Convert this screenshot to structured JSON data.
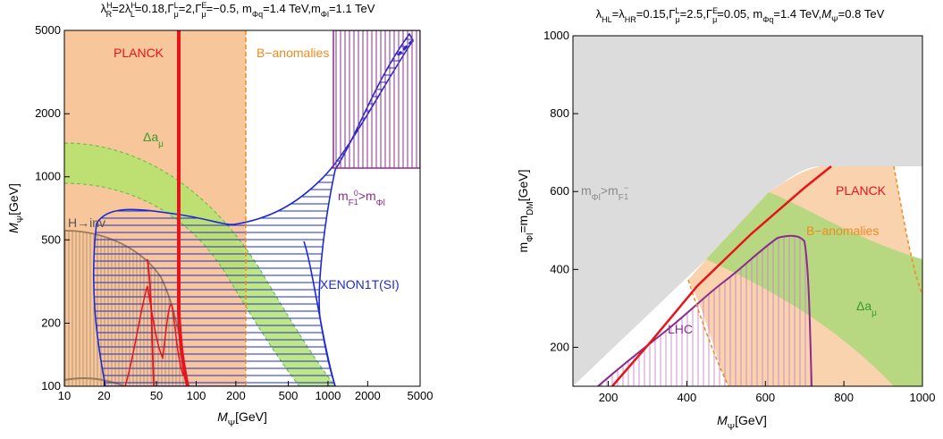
{
  "chart_data": [
    {
      "type": "region-plot",
      "title": "λ_R^H=2λ_L^H=0.18,Γ_μ^L=2,Γ_μ^E=−0.5, m_Φq=1.4 TeV,m_Φl=1.1 TeV",
      "xlabel": "MΨ[GeV]",
      "ylabel": "MΨ[GeV]",
      "x_scale": "log",
      "y_scale": "log",
      "xlim": [
        10,
        5000
      ],
      "ylim": [
        100,
        5000
      ],
      "x_ticks": [
        10,
        20,
        50,
        100,
        200,
        500,
        1000,
        2000,
        5000
      ],
      "y_ticks": [
        100,
        200,
        500,
        1000,
        2000,
        5000
      ],
      "x_tick_labels": [
        "10",
        "20",
        "50",
        "100",
        "200",
        "500",
        "1000",
        "2000",
        "5000"
      ],
      "y_tick_labels": [
        "100",
        "200",
        "500",
        "1000",
        "2000",
        "5000"
      ],
      "region_labels": [
        "PLANCK",
        "B−anomalies",
        "Δaμ",
        "mF1⁰>mΦl",
        "H→inv",
        "XENON1T(SI)"
      ],
      "colors": {
        "planck": "#e8141c",
        "b_anomalies": "#f7c69a",
        "b_anomalies_edge": "#f08a1e",
        "delta_a_mu": "#b4e46c",
        "delta_a_mu_edge": "#6fc04a",
        "xenon": "#1d2bd6",
        "mass_bound": "#8b2c8c",
        "h_inv": "#9a7a5a"
      },
      "curves": {
        "planck_band_x": [
          73,
          76
        ],
        "b_anomalies_x_max": 250,
        "xenon_boundary": [
          [
            20,
            100
          ],
          [
            18,
            200
          ],
          [
            18,
            350
          ],
          [
            22,
            640
          ],
          [
            30,
            700
          ],
          [
            50,
            690
          ],
          [
            80,
            670
          ],
          [
            140,
            640
          ],
          [
            210,
            600
          ],
          [
            300,
            640
          ],
          [
            450,
            780
          ],
          [
            700,
            1080
          ],
          [
            1000,
            1500
          ],
          [
            1500,
            2300
          ],
          [
            2500,
            3400
          ],
          [
            3200,
            4200
          ],
          [
            4500,
            5000
          ]
        ],
        "xenon_lower_edge": [
          [
            700,
            100
          ],
          [
            800,
            200
          ],
          [
            950,
            500
          ],
          [
            1200,
            1000
          ],
          [
            1800,
            2000
          ],
          [
            3000,
            3300
          ]
        ],
        "mass_bound_box": {
          "x": [
            1000,
            4800
          ],
          "y": [
            1100,
            5000
          ]
        }
      }
    },
    {
      "type": "region-plot",
      "title": "λ_HL=λ_HR=0.15,Γ_μ^L=2.5,Γ_μ^E=0.05, m_Φq=1.4 TeV,M_Ψ=0.8 TeV",
      "xlabel": "MΨ[GeV]",
      "ylabel": "mΦl=mDM[GeV]",
      "xlim": [
        110,
        1000
      ],
      "ylim": [
        100,
        1000
      ],
      "x_ticks": [
        200,
        400,
        600,
        800,
        1000
      ],
      "y_ticks": [
        200,
        400,
        600,
        800,
        1000
      ],
      "x_tick_labels": [
        "200",
        "400",
        "600",
        "800",
        "1000"
      ],
      "y_tick_labels": [
        "200",
        "400",
        "600",
        "800",
        "1000"
      ],
      "region_labels": [
        "mΦl>mF1⁻",
        "PLANCK",
        "B−anomalies",
        "Δaμ",
        "LHC"
      ],
      "colors": {
        "excluded": "#dcdcdc",
        "planck": "#e8141c",
        "b_anomalies": "#f9d2ae",
        "b_anomalies_edge": "#f08a1e",
        "delta_a_mu": "#b7d780",
        "lhc": "#8b2c8c",
        "lhc_fill": "#e6bfe6"
      },
      "curves": {
        "planck_line": [
          [
            200,
            100
          ],
          [
            300,
            210
          ],
          [
            400,
            330
          ],
          [
            500,
            430
          ],
          [
            600,
            530
          ],
          [
            700,
            620
          ],
          [
            760,
            665
          ]
        ],
        "lhc_contour": [
          [
            200,
            100
          ],
          [
            260,
            160
          ],
          [
            330,
            220
          ],
          [
            420,
            330
          ],
          [
            500,
            400
          ],
          [
            560,
            450
          ],
          [
            620,
            490
          ],
          [
            660,
            480
          ],
          [
            680,
            420
          ],
          [
            700,
            300
          ],
          [
            715,
            100
          ]
        ],
        "b_anom_left": [
          [
            420,
            310
          ],
          [
            450,
            200
          ],
          [
            490,
            100
          ]
        ],
        "b_anom_right": [
          [
            960,
            100
          ],
          [
            960,
            400
          ],
          [
            920,
            600
          ],
          [
            910,
            650
          ]
        ]
      }
    }
  ]
}
